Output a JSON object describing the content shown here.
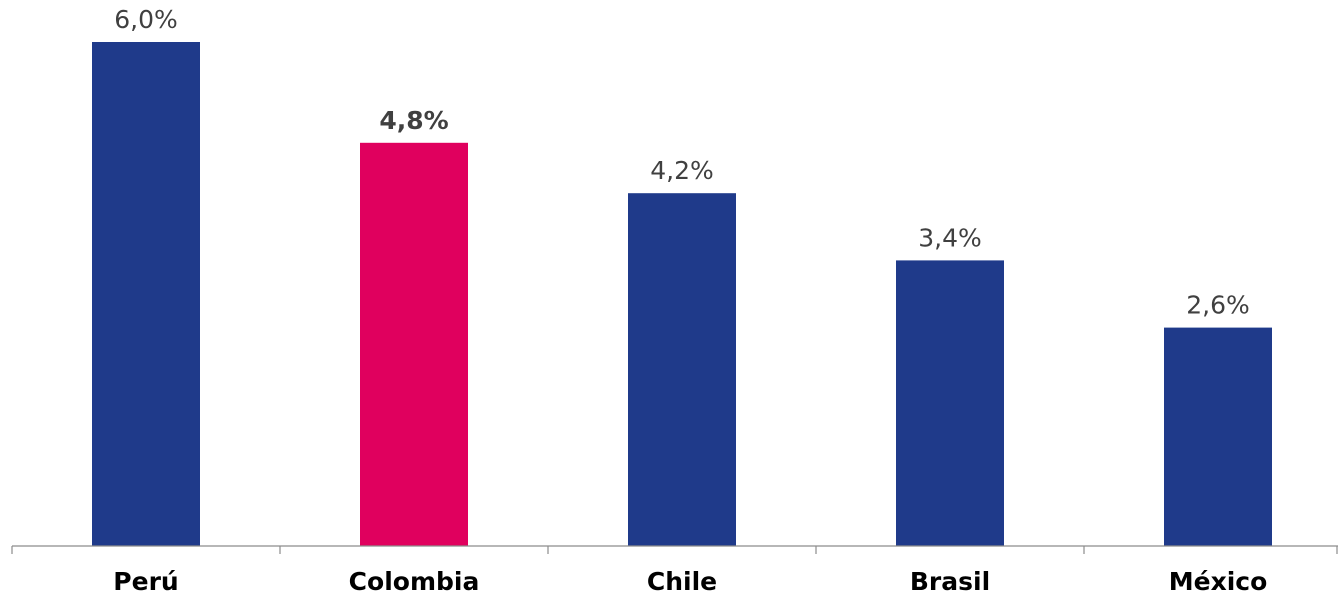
{
  "chart_data": {
    "type": "bar",
    "title": "",
    "xlabel": "",
    "ylabel": "",
    "categories": [
      "Perú",
      "Colombia",
      "Chile",
      "Brasil",
      "México"
    ],
    "values": [
      6.0,
      4.8,
      4.2,
      3.4,
      2.6
    ],
    "value_labels": [
      "6,0%",
      "4,8%",
      "4,2%",
      "3,4%",
      "2,6%"
    ],
    "highlight_index": 1,
    "ylim": [
      0,
      6.5
    ],
    "grid": false,
    "legend": "none",
    "colors": {
      "default_bar": "#1f3a8a",
      "highlight_bar": "#e0005e",
      "axis": "#8c8c8c",
      "value_text": "#404040",
      "category_text": "#000000"
    }
  }
}
